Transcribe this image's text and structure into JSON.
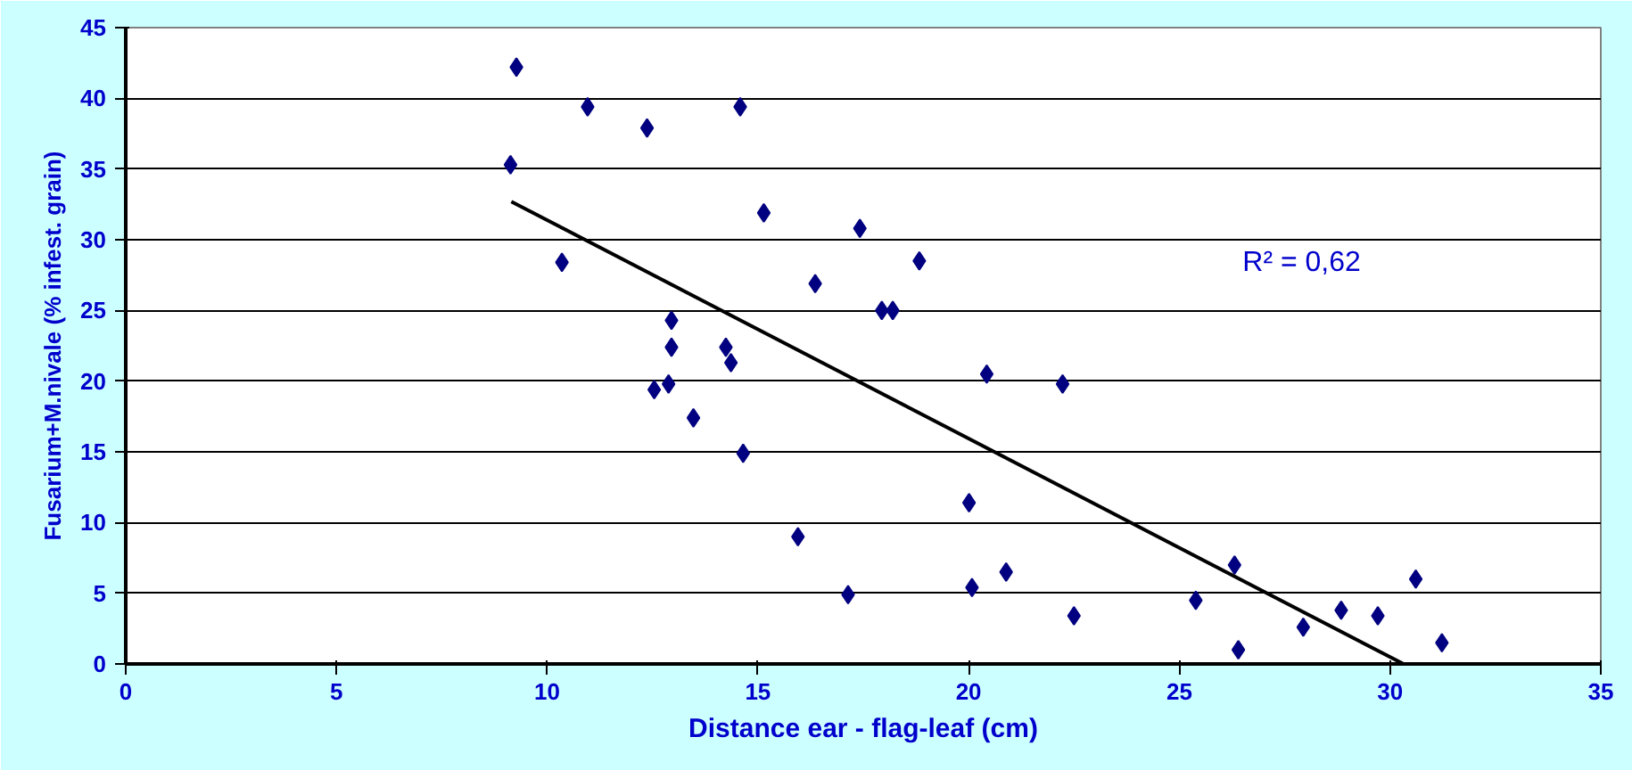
{
  "chart_data": {
    "type": "scatter",
    "xlabel": "Distance ear - flag-leaf (cm)",
    "ylabel": "Fusarium+M.nivale (% infest. grain)",
    "annotations": [
      "R² = 0,62"
    ],
    "xlim": [
      0,
      35
    ],
    "ylim": [
      0,
      45
    ],
    "xticks": [
      0,
      5,
      10,
      15,
      20,
      25,
      30,
      35
    ],
    "yticks": [
      0,
      5,
      10,
      15,
      20,
      25,
      30,
      35,
      40,
      45
    ],
    "grid": "y",
    "series": [
      {
        "marker": "diamond",
        "color": "#000080",
        "x": [
          9.27,
          10.96,
          12.37,
          9.13,
          10.35,
          12.54,
          14.58,
          15.14,
          17.42,
          18.83,
          16.36,
          17.94,
          18.2,
          12.95,
          12.95,
          14.24,
          14.36,
          20.43,
          22.23,
          12.88,
          13.47,
          14.65,
          20.01,
          15.95,
          17.14,
          20.08,
          20.89,
          22.5,
          26.31,
          25.39,
          26.4,
          27.94,
          28.84,
          29.71,
          30.61,
          31.23
        ],
        "values": [
          42.2,
          39.4,
          37.9,
          35.3,
          28.4,
          19.4,
          39.4,
          31.9,
          30.8,
          28.5,
          26.9,
          25.0,
          25.0,
          24.3,
          22.4,
          22.4,
          21.3,
          20.5,
          19.8,
          19.8,
          17.4,
          14.9,
          11.4,
          9.0,
          4.9,
          5.4,
          6.5,
          3.4,
          7.0,
          4.5,
          1.0,
          2.6,
          3.8,
          3.4,
          6.0,
          1.5
        ]
      },
      {
        "type": "line",
        "color": "#000000",
        "line_style": "solid",
        "x": [
          9.15,
          30.32
        ],
        "values": [
          32.7,
          0
        ]
      }
    ]
  }
}
